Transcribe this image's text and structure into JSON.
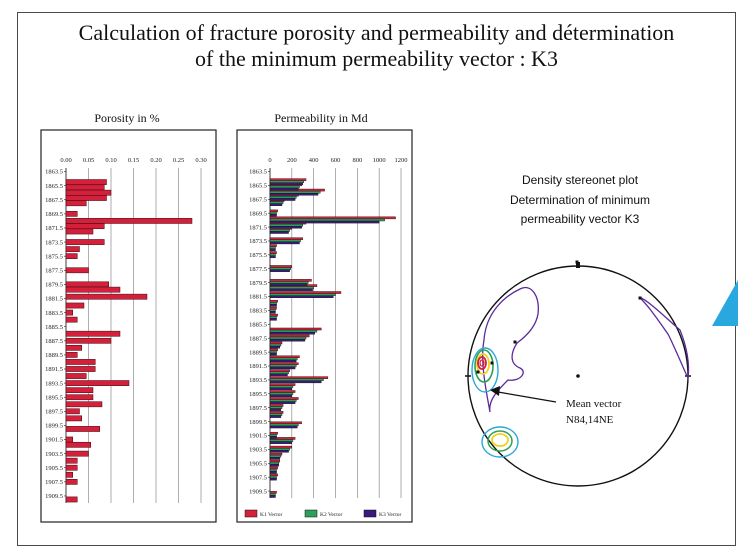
{
  "slide": {
    "title_line1": "Calculation of fracture  porosity and permeability and détermination",
    "title_line2": "of the minimum permeability vector : K3"
  },
  "chart_data": [
    {
      "type": "bar",
      "orientation": "horizontal",
      "title": "Porosity in %",
      "ylabels": [
        "1863.5",
        "1865.5",
        "1867.5",
        "1869.5",
        "1871.5",
        "1873.5",
        "1875.5",
        "1877.5",
        "1879.5",
        "1881.5",
        "1883.5",
        "1885.5",
        "1887.5",
        "1889.5",
        "1891.5",
        "1893.5",
        "1895.5",
        "1897.5",
        "1899.5",
        "1901.5",
        "1903.5",
        "1905.5",
        "1907.5",
        "1909.5"
      ],
      "xticks": [
        "0.00",
        "0.05",
        "0.10",
        "0.15",
        "0.20",
        "0.25",
        "0.30"
      ],
      "xlim": [
        0,
        0.3
      ],
      "ylim": [
        1863.0,
        1910.5
      ],
      "color": "#d4203a",
      "depths": [
        1865.0,
        1865.75,
        1866.5,
        1867.25,
        1868.0,
        1869.5,
        1870.5,
        1871.25,
        1872.0,
        1873.5,
        1874.5,
        1875.5,
        1877.5,
        1879.5,
        1880.25,
        1881.25,
        1882.5,
        1883.5,
        1884.5,
        1886.5,
        1887.5,
        1888.5,
        1889.5,
        1890.5,
        1891.5,
        1892.5,
        1893.5,
        1894.5,
        1895.5,
        1896.5,
        1897.5,
        1898.5,
        1900.0,
        1901.5,
        1902.25,
        1903.5,
        1904.5,
        1905.5,
        1906.5,
        1907.5,
        1910.0
      ],
      "values": [
        0.09,
        0.085,
        0.1,
        0.09,
        0.045,
        0.025,
        0.28,
        0.085,
        0.06,
        0.085,
        0.03,
        0.025,
        0.05,
        0.095,
        0.12,
        0.18,
        0.04,
        0.015,
        0.025,
        0.12,
        0.1,
        0.035,
        0.025,
        0.065,
        0.065,
        0.045,
        0.14,
        0.06,
        0.06,
        0.08,
        0.03,
        0.035,
        0.075,
        0.015,
        0.055,
        0.05,
        0.025,
        0.025,
        0.015,
        0.025,
        0.025
      ]
    },
    {
      "type": "bar",
      "orientation": "horizontal",
      "title": "Permeability in Md",
      "ylabels": [
        "1863.5",
        "1865.5",
        "1867.5",
        "1869.5",
        "1871.5",
        "1873.5",
        "1875.5",
        "1877.5",
        "1879.5",
        "1881.5",
        "1883.5",
        "1885.5",
        "1887.5",
        "1889.5",
        "1891.5",
        "1893.5",
        "1895.5",
        "1897.5",
        "1899.5",
        "1901.5",
        "1903.5",
        "1905.5",
        "1907.5",
        "1909.5"
      ],
      "xticks": [
        "0",
        "200",
        "400",
        "600",
        "800",
        "1000",
        "1200"
      ],
      "xlim": [
        0,
        1200
      ],
      "ylim": [
        1863.0,
        1910.5
      ],
      "depths": [
        1865.0,
        1865.75,
        1866.5,
        1867.25,
        1868.0,
        1869.5,
        1870.5,
        1871.25,
        1872.0,
        1873.5,
        1874.5,
        1875.5,
        1877.5,
        1879.5,
        1880.25,
        1881.25,
        1882.5,
        1883.5,
        1884.5,
        1886.5,
        1887.5,
        1888.5,
        1889.5,
        1890.5,
        1891.5,
        1892.5,
        1893.5,
        1894.5,
        1895.5,
        1896.5,
        1897.5,
        1898.5,
        1900.0,
        1901.5,
        1902.25,
        1903.5,
        1904.5,
        1905.5,
        1906.5,
        1907.5,
        1910.0
      ],
      "series": [
        {
          "name": "K1 Vector",
          "color": "#d4203a",
          "values": [
            330,
            290,
            500,
            260,
            130,
            70,
            1150,
            330,
            200,
            300,
            60,
            60,
            200,
            380,
            430,
            650,
            70,
            60,
            70,
            470,
            360,
            110,
            70,
            270,
            260,
            180,
            530,
            230,
            230,
            260,
            120,
            120,
            290,
            70,
            230,
            200,
            110,
            90,
            70,
            70,
            60
          ]
        },
        {
          "name": "K2 Vector",
          "color": "#2ca05a",
          "values": [
            310,
            270,
            460,
            240,
            120,
            60,
            1050,
            300,
            180,
            280,
            50,
            50,
            190,
            350,
            400,
            600,
            60,
            50,
            60,
            430,
            330,
            100,
            60,
            250,
            240,
            170,
            490,
            210,
            210,
            240,
            110,
            110,
            260,
            60,
            210,
            180,
            100,
            80,
            60,
            60,
            50
          ]
        },
        {
          "name": "K3 Vector",
          "color": "#3a1a7a",
          "values": [
            300,
            260,
            440,
            230,
            110,
            60,
            1000,
            290,
            170,
            270,
            50,
            50,
            180,
            340,
            390,
            580,
            60,
            50,
            60,
            410,
            320,
            90,
            60,
            240,
            230,
            160,
            470,
            200,
            200,
            230,
            100,
            100,
            250,
            60,
            200,
            170,
            90,
            80,
            60,
            60,
            50
          ]
        }
      ]
    }
  ],
  "stereonet": {
    "title_line1": "Density stereonet plot",
    "title_line2": "Determination of minimum",
    "title_line3": "permeability vector K3",
    "annotation_line1": "Mean vector",
    "annotation_line2": "N84,14NE"
  }
}
